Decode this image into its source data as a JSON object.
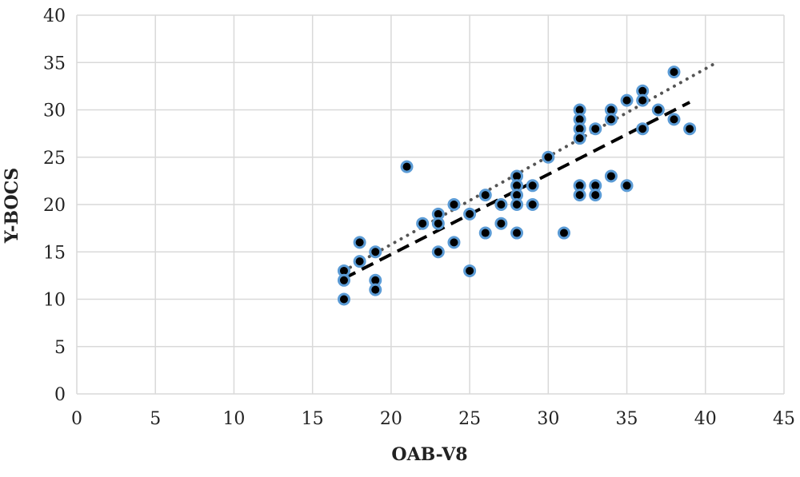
{
  "chart_data": {
    "type": "scatter",
    "xlabel": "OAB-V8",
    "ylabel": "Y-BOCS",
    "xlim": [
      0,
      45
    ],
    "ylim": [
      0,
      40
    ],
    "xticks": [
      "0",
      "5",
      "10",
      "15",
      "20",
      "25",
      "30",
      "35",
      "40",
      "45"
    ],
    "yticks": [
      "0",
      "5",
      "10",
      "15",
      "20",
      "25",
      "30",
      "35",
      "40"
    ],
    "grid": true,
    "legend": "none",
    "series": [
      {
        "points": [
          [
            17,
            13
          ],
          [
            17,
            12
          ],
          [
            17,
            10
          ],
          [
            18,
            16
          ],
          [
            18,
            14
          ],
          [
            19,
            15
          ],
          [
            19,
            12
          ],
          [
            19,
            11
          ],
          [
            21,
            24
          ],
          [
            22,
            18
          ],
          [
            23,
            19
          ],
          [
            23,
            18
          ],
          [
            23,
            15
          ],
          [
            24,
            20
          ],
          [
            24,
            16
          ],
          [
            25,
            19
          ],
          [
            25,
            13
          ],
          [
            26,
            21
          ],
          [
            26,
            17
          ],
          [
            27,
            20
          ],
          [
            27,
            18
          ],
          [
            28,
            23
          ],
          [
            28,
            22
          ],
          [
            28,
            21
          ],
          [
            28,
            20
          ],
          [
            28,
            17
          ],
          [
            29,
            22
          ],
          [
            29,
            20
          ],
          [
            30,
            25
          ],
          [
            31,
            17
          ],
          [
            32,
            30
          ],
          [
            32,
            29
          ],
          [
            32,
            28
          ],
          [
            32,
            27
          ],
          [
            32,
            22
          ],
          [
            32,
            21
          ],
          [
            33,
            28
          ],
          [
            33,
            22
          ],
          [
            33,
            21
          ],
          [
            34,
            30
          ],
          [
            34,
            29
          ],
          [
            34,
            23
          ],
          [
            35,
            31
          ],
          [
            35,
            22
          ],
          [
            36,
            32
          ],
          [
            36,
            31
          ],
          [
            36,
            28
          ],
          [
            37,
            30
          ],
          [
            38,
            34
          ],
          [
            38,
            29
          ],
          [
            39,
            28
          ]
        ]
      }
    ],
    "trendlines": [
      {
        "style": "dashed",
        "color": "#000000",
        "from": [
          17,
          12.2
        ],
        "to": [
          39,
          30.8
        ]
      },
      {
        "style": "dotted",
        "color": "#555555",
        "from": [
          17,
          13
        ],
        "to": [
          40.6,
          34.9
        ]
      }
    ],
    "colors": {
      "marker_fill": "#000000",
      "marker_edge": "#5b9bd5",
      "grid": "#d9d9d9"
    }
  }
}
